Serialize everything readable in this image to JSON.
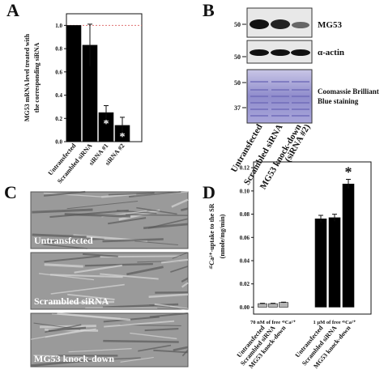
{
  "chart_data": [
    {
      "type": "bar",
      "label": "A",
      "y_label": [
        "MG53 mRNA level treated with",
        "the corresponding siRNA"
      ],
      "categories": [
        "Untransfected",
        "Scrambled siRNA",
        "siRNA #1",
        "siRNA #2"
      ],
      "values": [
        1.0,
        0.83,
        0.25,
        0.14
      ],
      "errors": [
        null,
        0.18,
        0.06,
        0.07
      ],
      "value_annotations": [
        null,
        null,
        "*",
        "*"
      ],
      "color": "#000000",
      "reference_line": {
        "value": 1.0,
        "color": "#e07070"
      },
      "ylim": [
        0,
        1.1
      ],
      "yticks": [
        {
          "value": 0,
          "label": "0.0"
        },
        0.2,
        0.4,
        0.6,
        0.8,
        {
          "value": 1,
          "label": "1.0"
        }
      ]
    },
    {
      "type": "bar",
      "label": "D",
      "y_label": [
        "⁴⁵Ca²⁺-uptake to the SR",
        "(nmole/mg/min)"
      ],
      "categories": [
        "Untransfected",
        "Scrambled siRNA",
        "MG53 knock-down",
        "Untransfected",
        "Scrambled siRNA",
        "MG53 knock-down"
      ],
      "values": [
        0.003,
        0.003,
        0.004,
        0.076,
        0.077,
        0.106
      ],
      "errors": [
        0.0003,
        0.0003,
        0.0003,
        0.003,
        0.003,
        0.004
      ],
      "value_annotations": [
        null,
        null,
        null,
        null,
        null,
        "*"
      ],
      "colors": [
        "#b5b5b5",
        "#b5b5b5",
        "#b5b5b5",
        "#000000",
        "#000000",
        "#000000"
      ],
      "group_labels": [
        "70 nM of free ⁴⁵Ca²⁺",
        "1 μM of free ⁴⁵Ca²⁺"
      ],
      "ylim": [
        -0.006,
        0.125
      ],
      "yticks": [
        {
          "value": 0,
          "label": "0.00"
        },
        0.02,
        0.04,
        0.06,
        0.08,
        {
          "value": 0.1,
          "label": "0.10"
        },
        0.12
      ]
    }
  ],
  "blot": {
    "label": "B",
    "markers": [
      "50",
      "50",
      "50",
      "37"
    ],
    "bands": [
      "MG53",
      "α-actin",
      "Coomassie Brilliant",
      "Blue staining"
    ],
    "lanes": [
      "Untransfected",
      "Scrambled siRNA",
      "MG53 knock-down",
      "(siRNA #2)"
    ]
  },
  "micrographs": {
    "label": "C",
    "images": [
      "Untransfected",
      "Scrambled siRNA",
      "MG53 knock-down"
    ]
  }
}
